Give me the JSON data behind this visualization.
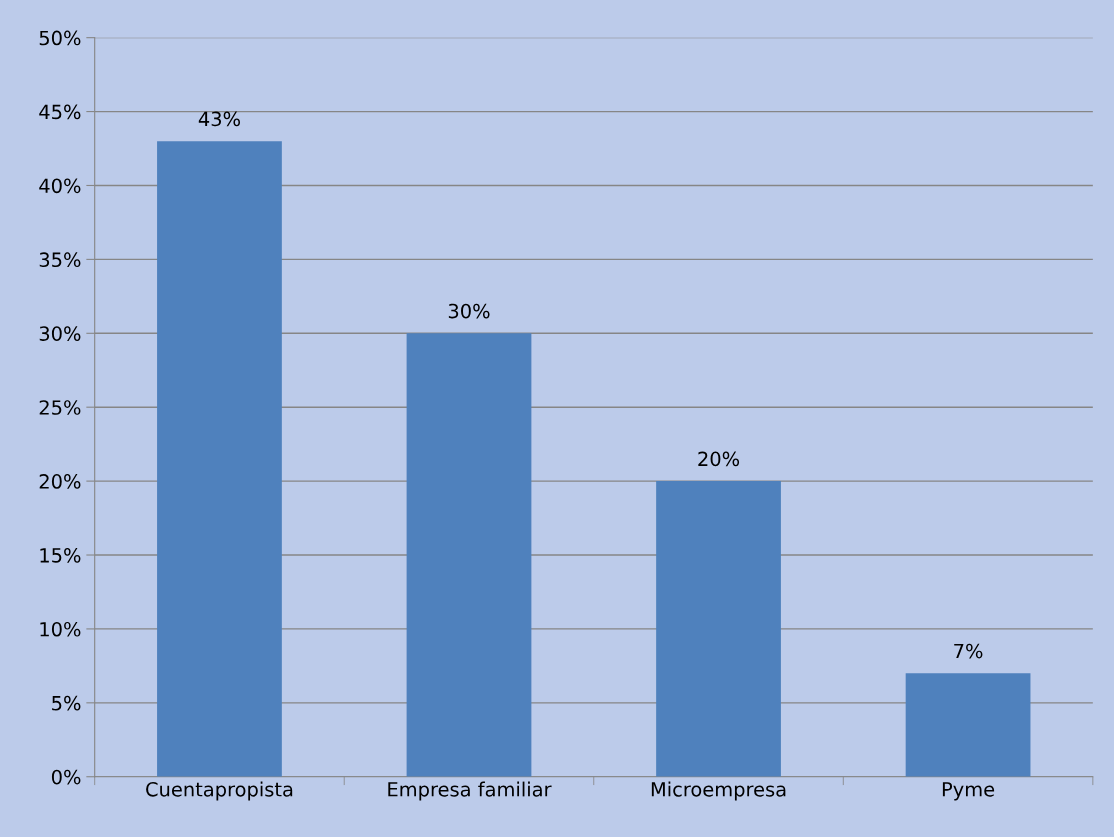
{
  "chart_data": {
    "type": "bar",
    "categories": [
      "Cuentapropista",
      "Empresa familiar",
      "Microempresa",
      "Pyme"
    ],
    "values": [
      43,
      30,
      20,
      7
    ],
    "color": "#4f81bd",
    "value_labels": [
      "43%",
      "30%",
      "20%",
      "7%"
    ],
    "ylim": [
      0,
      50
    ],
    "yticks": [
      {
        "value": 0,
        "label": "0%"
      },
      {
        "value": 5,
        "label": "5%"
      },
      {
        "value": 10,
        "label": "10%"
      },
      {
        "value": 15,
        "label": "15%"
      },
      {
        "value": 20,
        "label": "20%"
      },
      {
        "value": 25,
        "label": "25%"
      },
      {
        "value": 30,
        "label": "30%"
      },
      {
        "value": 35,
        "label": "35%"
      },
      {
        "value": 40,
        "label": "40%"
      },
      {
        "value": 45,
        "label": "45%"
      },
      {
        "value": 50,
        "label": "50%"
      }
    ],
    "grid": "y",
    "legend": false
  }
}
